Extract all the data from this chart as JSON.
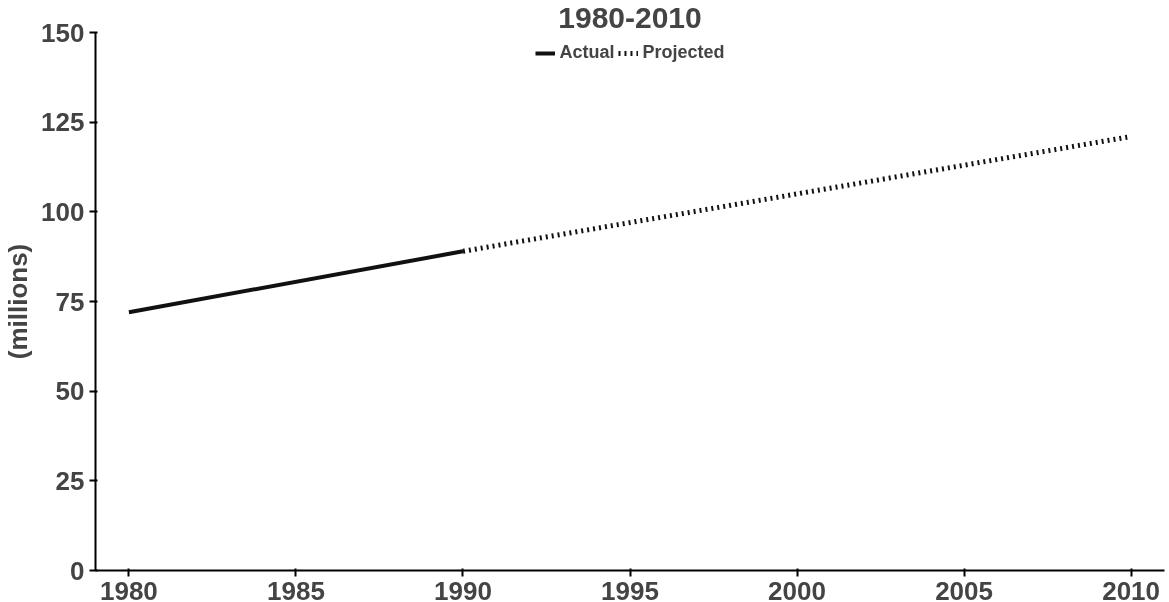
{
  "chart_data": {
    "type": "line",
    "title": "1980-2010",
    "ylabel": "(millions)",
    "series": [
      {
        "name": "Actual",
        "color": "#111111",
        "x": [
          1980,
          1990
        ],
        "values": [
          72,
          89
        ],
        "line_style": "solid"
      },
      {
        "name": "Projected",
        "color": "#111111",
        "x": [
          1990,
          2010
        ],
        "values": [
          89,
          121
        ],
        "line_style": "dotted"
      }
    ],
    "xlim": [
      1979,
      2011
    ],
    "ylim": [
      0,
      150
    ],
    "xticks": [
      1980,
      1985,
      1990,
      1995,
      2000,
      2005,
      2010
    ],
    "yticks": [
      0,
      25,
      50,
      75,
      100,
      125,
      150
    ],
    "grid": false,
    "legend": "top",
    "marker": "none"
  }
}
